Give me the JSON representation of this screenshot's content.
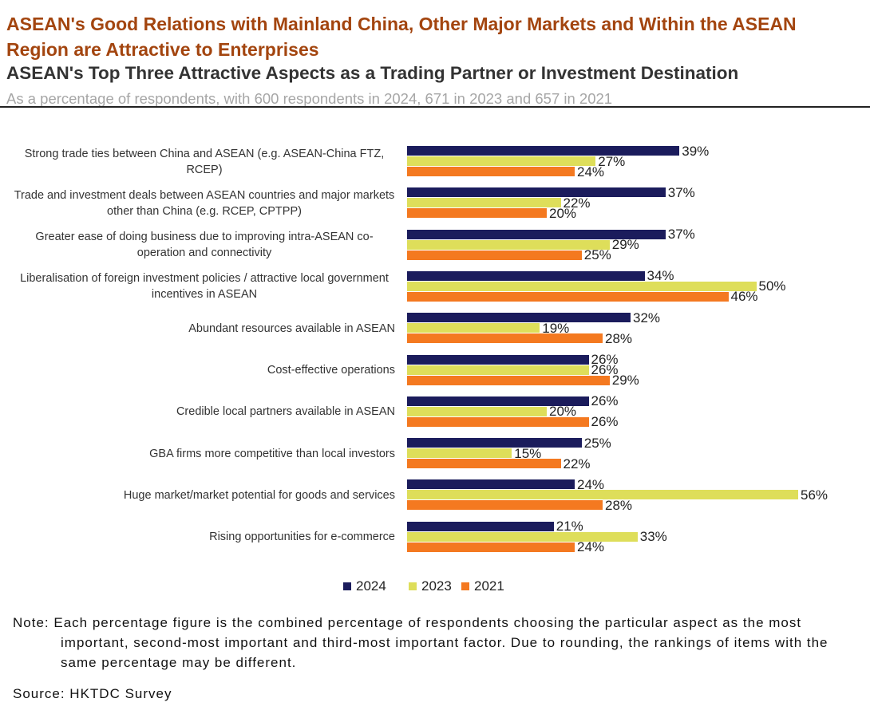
{
  "chart_data": {
    "type": "bar",
    "orientation": "horizontal",
    "title": "ASEAN's Good Relations with Mainland China, Other Major Markets and Within the ASEAN Region are Attractive to Enterprises",
    "subtitle": "ASEAN's Top Three Attractive Aspects as a Trading Partner or Investment Destination",
    "description": "As a percentage of respondents, with 600 respondents in 2024, 671 in 2023 and 657 in 2021",
    "categories": [
      "Strong trade ties between China and ASEAN (e.g. ASEAN-China FTZ, RCEP)",
      "Trade and investment deals between ASEAN countries and major markets other than China (e.g. RCEP, CPTPP)",
      "Greater ease of doing business due to improving intra-ASEAN co-operation and connectivity",
      "Liberalisation of foreign investment policies / attractive local government incentives in ASEAN",
      "Abundant resources available in ASEAN",
      "Cost-effective operations",
      "Credible local partners available in ASEAN",
      "GBA firms more competitive than local investors",
      "Huge market/market potential for goods and services",
      "Rising opportunities for e-commerce"
    ],
    "series": [
      {
        "name": "2024",
        "color": "#1b1c5c",
        "values": [
          39,
          37,
          37,
          34,
          32,
          26,
          26,
          25,
          24,
          21
        ],
        "value_labels": [
          "39%",
          "37%",
          "37%",
          "34%",
          "32%",
          "26%",
          "26%",
          "25%",
          "24%",
          "21%"
        ]
      },
      {
        "name": "2023",
        "color": "#dede5a",
        "values": [
          27,
          22,
          29,
          50,
          19,
          26,
          20,
          15,
          56,
          33
        ],
        "value_labels": [
          "27%",
          "22%",
          "29%",
          "50%",
          "19%",
          "26%",
          "20%",
          "15%",
          "56%",
          "33%"
        ]
      },
      {
        "name": "2021",
        "color": "#f47920",
        "values": [
          24,
          20,
          25,
          46,
          28,
          29,
          26,
          22,
          28,
          24
        ],
        "value_labels": [
          "24%",
          "20%",
          "25%",
          "46%",
          "28%",
          "29%",
          "26%",
          "22%",
          "28%",
          "24%"
        ]
      }
    ],
    "legend": "bottom",
    "note": "Note: Each percentage figure is the combined percentage of respondents choosing the particular aspect as the most important, second-most important and third-most important factor. Due to rounding, the rankings of items with the same percentage may be different.",
    "source": "Source: HKTDC Survey"
  }
}
